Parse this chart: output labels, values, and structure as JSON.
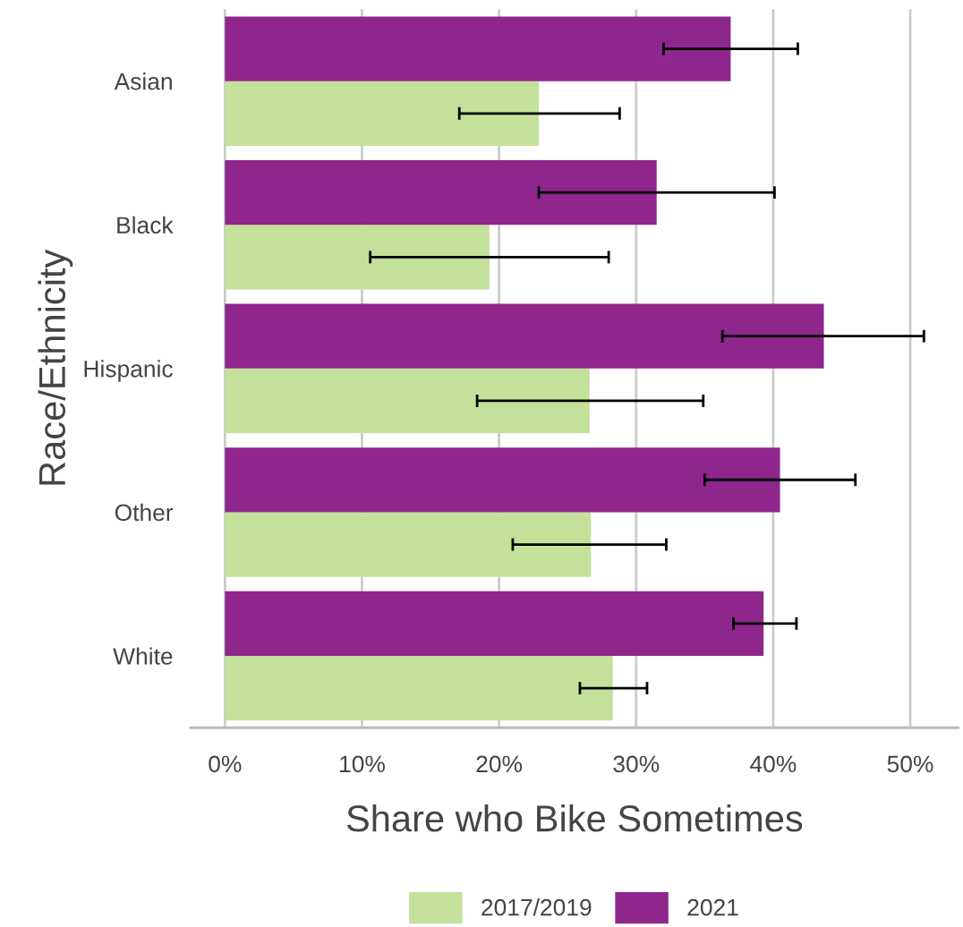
{
  "chart_data": {
    "type": "bar",
    "orientation": "horizontal",
    "xlabel": "Share who Bike Sometimes",
    "ylabel": "Race/Ethnicity",
    "categories": [
      "Asian",
      "Black",
      "Hispanic",
      "Other",
      "White"
    ],
    "series": [
      {
        "name": "2017/2019",
        "color": "#c3e19a",
        "values": [
          22.9,
          19.3,
          26.6,
          26.7,
          28.3
        ],
        "errors": [
          [
            17.1,
            28.8
          ],
          [
            10.6,
            28.0
          ],
          [
            18.4,
            34.9
          ],
          [
            21.0,
            32.2
          ],
          [
            25.9,
            30.8
          ]
        ]
      },
      {
        "name": "2021",
        "color": "#8e268b",
        "values": [
          36.9,
          31.5,
          43.7,
          40.5,
          39.3
        ],
        "errors": [
          [
            32.0,
            41.8
          ],
          [
            22.9,
            40.1
          ],
          [
            36.3,
            51.0
          ],
          [
            35.0,
            46.0
          ],
          [
            37.1,
            41.7
          ]
        ]
      }
    ],
    "xlim": [
      -2.5,
      53.5
    ],
    "xticks": [
      {
        "value": 0,
        "label": "0%"
      },
      {
        "value": 10,
        "label": "10%"
      },
      {
        "value": 20,
        "label": "20%"
      },
      {
        "value": 30,
        "label": "30%"
      },
      {
        "value": 40,
        "label": "40%"
      },
      {
        "value": 50,
        "label": "50%"
      }
    ],
    "grid": "x",
    "legend": "bottom"
  }
}
